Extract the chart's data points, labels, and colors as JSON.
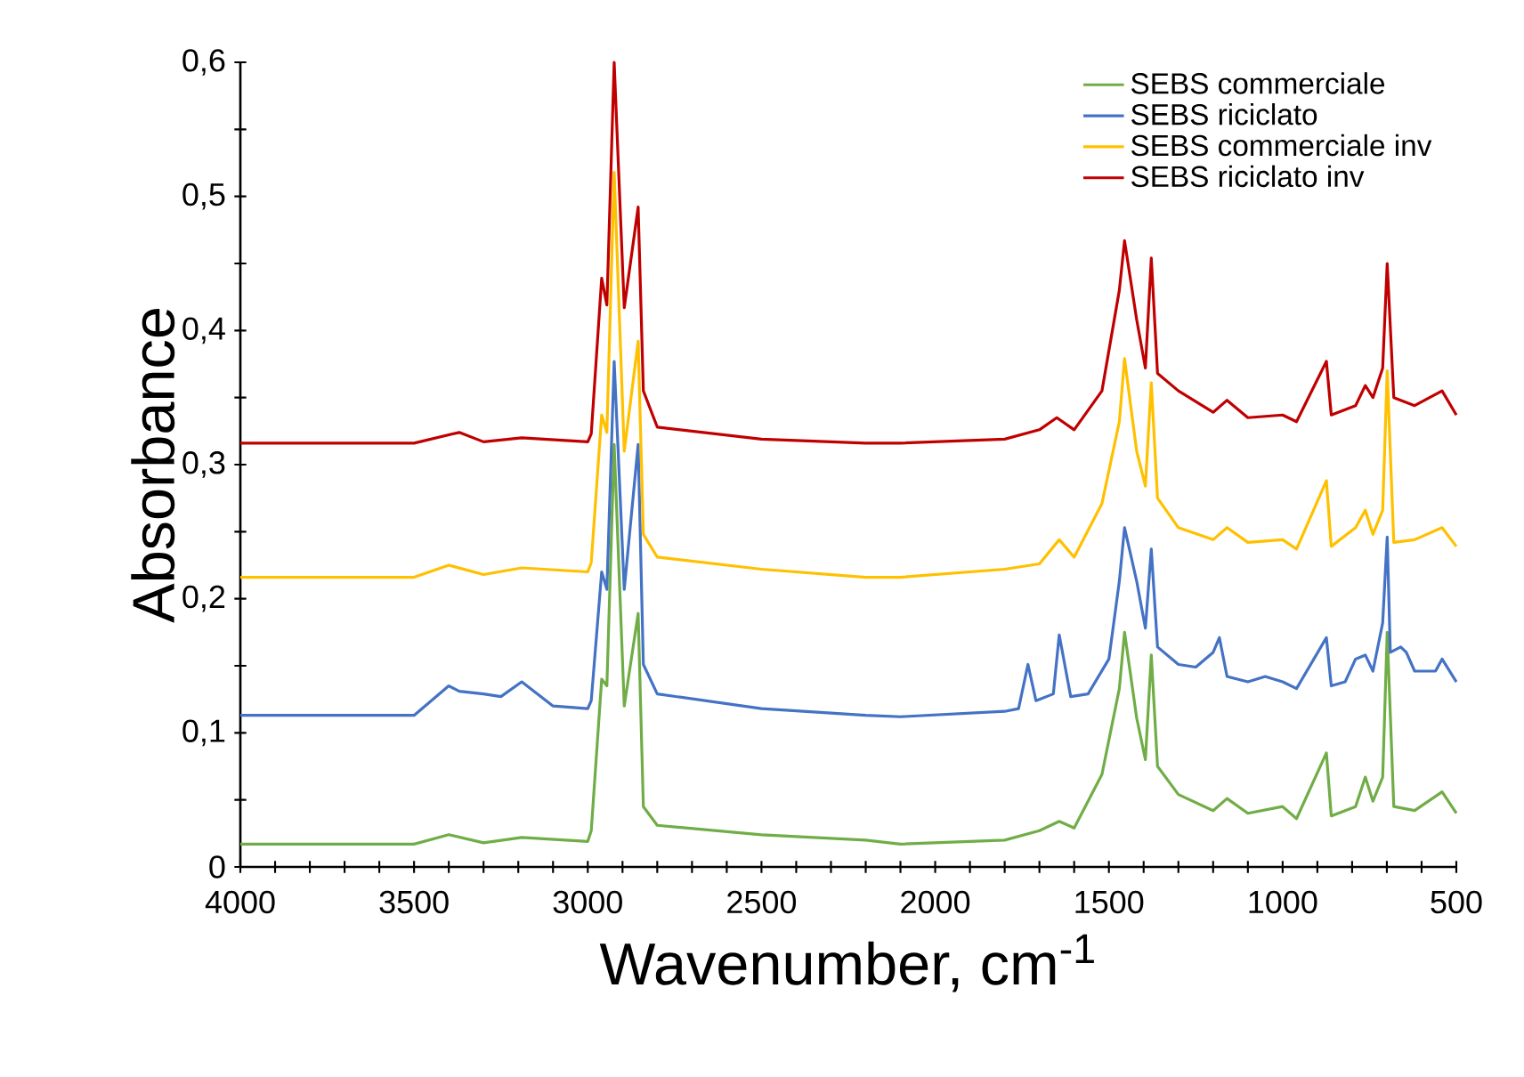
{
  "chart_data": {
    "type": "line",
    "xlabel": "Wavenumber, cm$^{-1}$",
    "ylabel": "Absorbance",
    "xlim": [
      4000,
      500
    ],
    "ylim": [
      0,
      0.6
    ],
    "xticks": [
      {
        "value": 4000,
        "label": "4000"
      },
      {
        "value": 3900,
        "label": null
      },
      {
        "value": 3800,
        "label": null
      },
      {
        "value": 3700,
        "label": null
      },
      {
        "value": 3600,
        "label": null
      },
      {
        "value": 3500,
        "label": "3500"
      },
      {
        "value": 3400,
        "label": null
      },
      {
        "value": 3300,
        "label": null
      },
      {
        "value": 3200,
        "label": null
      },
      {
        "value": 3100,
        "label": null
      },
      {
        "value": 3000,
        "label": "3000"
      },
      {
        "value": 2900,
        "label": null
      },
      {
        "value": 2800,
        "label": null
      },
      {
        "value": 2700,
        "label": null
      },
      {
        "value": 2600,
        "label": null
      },
      {
        "value": 2500,
        "label": "2500"
      },
      {
        "value": 2400,
        "label": null
      },
      {
        "value": 2300,
        "label": null
      },
      {
        "value": 2200,
        "label": null
      },
      {
        "value": 2100,
        "label": null
      },
      {
        "value": 2000,
        "label": "2000"
      },
      {
        "value": 1900,
        "label": null
      },
      {
        "value": 1800,
        "label": null
      },
      {
        "value": 1700,
        "label": null
      },
      {
        "value": 1600,
        "label": null
      },
      {
        "value": 1500,
        "label": "1500"
      },
      {
        "value": 1400,
        "label": null
      },
      {
        "value": 1300,
        "label": null
      },
      {
        "value": 1200,
        "label": null
      },
      {
        "value": 1100,
        "label": null
      },
      {
        "value": 1000,
        "label": "1000"
      },
      {
        "value": 900,
        "label": null
      },
      {
        "value": 800,
        "label": null
      },
      {
        "value": 700,
        "label": null
      },
      {
        "value": 600,
        "label": null
      },
      {
        "value": 500,
        "label": "500"
      }
    ],
    "yticks": [
      0,
      {
        "value": 0.05,
        "label": null
      },
      {
        "value": 0.1,
        "label": "0,1"
      },
      {
        "value": 0.15,
        "label": null
      },
      {
        "value": 0.2,
        "label": "0,2"
      },
      {
        "value": 0.25,
        "label": null
      },
      {
        "value": 0.3,
        "label": "0,3"
      },
      {
        "value": 0.35,
        "label": null
      },
      {
        "value": 0.4,
        "label": "0,4"
      },
      {
        "value": 0.45,
        "label": null
      },
      {
        "value": 0.5,
        "label": "0,5"
      },
      {
        "value": 0.55,
        "label": null
      },
      {
        "value": 0.6,
        "label": "0,6"
      }
    ],
    "grid": false,
    "legend": "top right",
    "marker": "none",
    "line_style": "solid",
    "series": [
      {
        "name": "SEBS commerciale",
        "color": "#70ad47",
        "x": [
          4000,
          3500,
          3400,
          3300,
          3190,
          3000,
          2990,
          2960,
          2945,
          2924,
          2895,
          2855,
          2840,
          2800,
          2500,
          2200,
          2100,
          1800,
          1700,
          1643,
          1600,
          1520,
          1470,
          1455,
          1420,
          1395,
          1378,
          1360,
          1300,
          1200,
          1160,
          1100,
          1000,
          960,
          874,
          860,
          790,
          762,
          740,
          712,
          699,
          680,
          620,
          541,
          500
        ],
        "values": [
          0.017,
          0.017,
          0.024,
          0.018,
          0.022,
          0.019,
          0.027,
          0.14,
          0.135,
          0.315,
          0.12,
          0.189,
          0.045,
          0.031,
          0.024,
          0.02,
          0.017,
          0.02,
          0.027,
          0.034,
          0.029,
          0.069,
          0.133,
          0.175,
          0.111,
          0.08,
          0.158,
          0.075,
          0.054,
          0.042,
          0.051,
          0.04,
          0.045,
          0.036,
          0.085,
          0.038,
          0.045,
          0.067,
          0.049,
          0.067,
          0.175,
          0.045,
          0.042,
          0.056,
          0.04
        ]
      },
      {
        "name": "SEBS riciclato",
        "color": "#4472c4",
        "x": [
          4000,
          3500,
          3400,
          3370,
          3300,
          3250,
          3190,
          3100,
          3000,
          2990,
          2960,
          2945,
          2924,
          2895,
          2855,
          2840,
          2800,
          2500,
          2200,
          2100,
          1800,
          1760,
          1733,
          1710,
          1660,
          1643,
          1610,
          1560,
          1500,
          1470,
          1455,
          1420,
          1395,
          1378,
          1360,
          1300,
          1250,
          1200,
          1182,
          1160,
          1100,
          1050,
          1000,
          960,
          874,
          860,
          820,
          790,
          762,
          740,
          712,
          699,
          690,
          660,
          644,
          620,
          560,
          541,
          500
        ],
        "values": [
          0.113,
          0.113,
          0.135,
          0.131,
          0.129,
          0.127,
          0.138,
          0.12,
          0.118,
          0.124,
          0.22,
          0.207,
          0.377,
          0.207,
          0.315,
          0.151,
          0.129,
          0.118,
          0.113,
          0.112,
          0.116,
          0.118,
          0.151,
          0.124,
          0.129,
          0.173,
          0.127,
          0.129,
          0.155,
          0.213,
          0.253,
          0.213,
          0.178,
          0.237,
          0.164,
          0.151,
          0.149,
          0.16,
          0.171,
          0.142,
          0.138,
          0.142,
          0.138,
          0.133,
          0.171,
          0.135,
          0.138,
          0.155,
          0.158,
          0.146,
          0.182,
          0.246,
          0.16,
          0.164,
          0.16,
          0.146,
          0.146,
          0.155,
          0.138
        ]
      },
      {
        "name": "SEBS commerciale inv",
        "color": "#ffc000",
        "x": [
          4000,
          3500,
          3400,
          3300,
          3190,
          3000,
          2990,
          2960,
          2945,
          2924,
          2895,
          2855,
          2840,
          2800,
          2500,
          2200,
          2100,
          1800,
          1700,
          1643,
          1600,
          1520,
          1470,
          1455,
          1420,
          1395,
          1378,
          1360,
          1300,
          1200,
          1160,
          1100,
          1000,
          960,
          874,
          860,
          790,
          762,
          740,
          712,
          699,
          680,
          620,
          541,
          500
        ],
        "values": [
          0.216,
          0.216,
          0.225,
          0.218,
          0.223,
          0.22,
          0.227,
          0.337,
          0.324,
          0.518,
          0.31,
          0.392,
          0.248,
          0.231,
          0.222,
          0.216,
          0.216,
          0.222,
          0.226,
          0.244,
          0.231,
          0.271,
          0.332,
          0.379,
          0.31,
          0.284,
          0.361,
          0.275,
          0.253,
          0.244,
          0.253,
          0.242,
          0.244,
          0.237,
          0.288,
          0.239,
          0.253,
          0.266,
          0.248,
          0.266,
          0.37,
          0.242,
          0.244,
          0.253,
          0.239
        ]
      },
      {
        "name": "SEBS riciclato inv",
        "color": "#c00000",
        "x": [
          4000,
          3500,
          3370,
          3300,
          3190,
          3000,
          2990,
          2960,
          2945,
          2924,
          2895,
          2855,
          2840,
          2800,
          2500,
          2200,
          2100,
          1800,
          1700,
          1650,
          1600,
          1520,
          1470,
          1455,
          1420,
          1395,
          1378,
          1360,
          1300,
          1200,
          1160,
          1100,
          1000,
          960,
          874,
          860,
          790,
          762,
          740,
          712,
          699,
          680,
          620,
          541,
          500
        ],
        "values": [
          0.316,
          0.316,
          0.324,
          0.317,
          0.32,
          0.317,
          0.323,
          0.439,
          0.419,
          0.6,
          0.417,
          0.492,
          0.355,
          0.328,
          0.319,
          0.316,
          0.316,
          0.319,
          0.326,
          0.335,
          0.326,
          0.355,
          0.43,
          0.467,
          0.408,
          0.372,
          0.454,
          0.368,
          0.355,
          0.339,
          0.348,
          0.335,
          0.337,
          0.332,
          0.377,
          0.337,
          0.344,
          0.359,
          0.35,
          0.372,
          0.45,
          0.35,
          0.344,
          0.355,
          0.337
        ]
      }
    ]
  }
}
